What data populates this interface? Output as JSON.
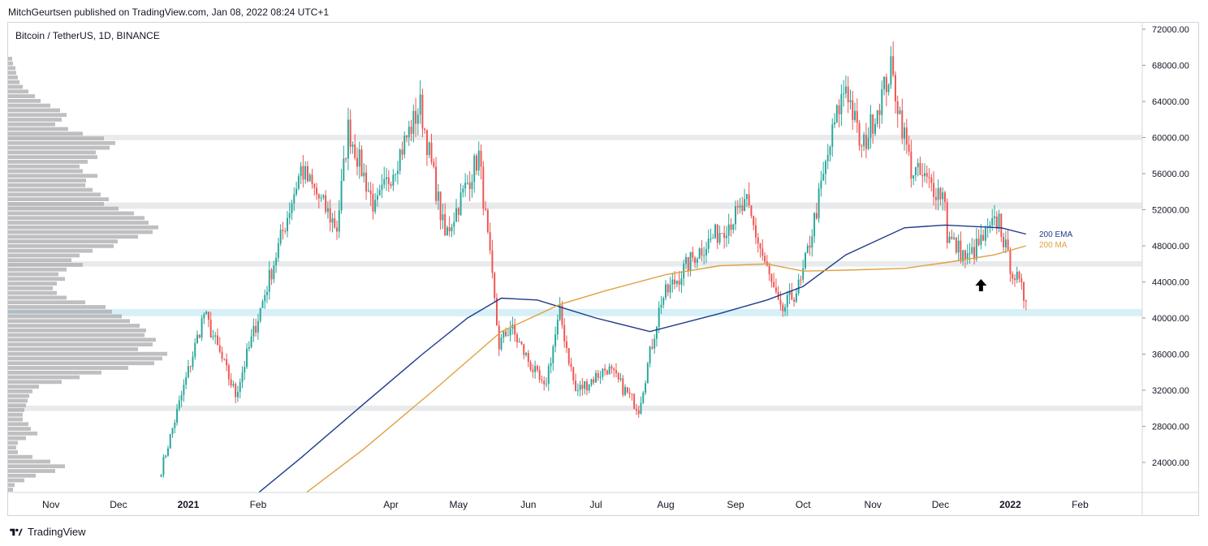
{
  "header": {
    "publisher_line": "MitchGeurtsen published on TradingView.com, Jan 08, 2022 08:24 UTC+1"
  },
  "symbol_label": "Bitcoin / TetherUS, 1D, BINANCE",
  "footer": {
    "brand": "TradingView",
    "logo_icon": "tradingview-logo-icon"
  },
  "colors": {
    "up": "#26a69a",
    "down": "#ef5350",
    "ema": "#1e3a8a",
    "ma": "#e0a040",
    "zone_gray": "#e9eaec",
    "zone_blue": "#d7f0f7",
    "volume_profile": "#a9aaae"
  },
  "chart_data": {
    "type": "candlestick",
    "title": "Bitcoin / TetherUS, 1D, BINANCE",
    "y_axis": {
      "ticks": [
        72000,
        68000,
        64000,
        60000,
        56000,
        52000,
        48000,
        44000,
        40000,
        36000,
        32000,
        28000,
        24000
      ],
      "tick_labels": [
        "72000.00",
        "68000.00",
        "64000.00",
        "60000.00",
        "56000.00",
        "52000.00",
        "48000.00",
        "44000.00",
        "40000.00",
        "36000.00",
        "32000.00",
        "28000.00",
        "24000.00"
      ],
      "range": [
        20200,
        72800
      ]
    },
    "x_axis": {
      "labels": [
        "Nov",
        "Dec",
        "2021",
        "Feb",
        "Apr",
        "May",
        "Jun",
        "Jul",
        "Aug",
        "Sep",
        "Oct",
        "Nov",
        "Dec",
        "2022",
        "Feb"
      ],
      "bold_labels": [
        "2021",
        "2022"
      ],
      "range": [
        "2020-10-13",
        "2022-02-25"
      ]
    },
    "anchors": [
      [
        "2020-12-20",
        23200
      ],
      [
        "2021-01-08",
        40500
      ],
      [
        "2021-01-22",
        31500
      ],
      [
        "2021-02-20",
        56500
      ],
      [
        "2021-03-08",
        50000
      ],
      [
        "2021-03-13",
        61000
      ],
      [
        "2021-03-25",
        52000
      ],
      [
        "2021-04-14",
        63500
      ],
      [
        "2021-04-25",
        49000
      ],
      [
        "2021-05-10",
        58000
      ],
      [
        "2021-05-19",
        37000
      ],
      [
        "2021-05-24",
        39000
      ],
      [
        "2021-06-08",
        32000
      ],
      [
        "2021-06-15",
        40500
      ],
      [
        "2021-06-22",
        31800
      ],
      [
        "2021-07-06",
        34500
      ],
      [
        "2021-07-20",
        30000
      ],
      [
        "2021-07-30",
        42000
      ],
      [
        "2021-08-14",
        47000
      ],
      [
        "2021-09-06",
        52500
      ],
      [
        "2021-09-21",
        40500
      ],
      [
        "2021-09-30",
        43800
      ],
      [
        "2021-10-15",
        61500
      ],
      [
        "2021-10-20",
        66000
      ],
      [
        "2021-10-27",
        58500
      ],
      [
        "2021-11-09",
        67500
      ],
      [
        "2021-11-18",
        56500
      ],
      [
        "2021-12-03",
        53500
      ],
      [
        "2021-12-04",
        49000
      ],
      [
        "2021-12-13",
        46500
      ],
      [
        "2021-12-27",
        51000
      ],
      [
        "2021-12-31",
        46500
      ],
      [
        "2022-01-08",
        41800
      ]
    ],
    "moving_averages": [
      {
        "name": "200 EMA",
        "values": [
          [
            "2021-01-30",
            20200
          ],
          [
            "2021-02-20",
            24500
          ],
          [
            "2021-03-20",
            30500
          ],
          [
            "2021-04-15",
            36000
          ],
          [
            "2021-05-05",
            40000
          ],
          [
            "2021-05-20",
            42200
          ],
          [
            "2021-06-05",
            42000
          ],
          [
            "2021-07-01",
            40000
          ],
          [
            "2021-07-25",
            38500
          ],
          [
            "2021-08-25",
            40500
          ],
          [
            "2021-09-15",
            42000
          ],
          [
            "2021-10-01",
            43500
          ],
          [
            "2021-10-20",
            47000
          ],
          [
            "2021-11-15",
            50000
          ],
          [
            "2021-12-03",
            50300
          ],
          [
            "2021-12-28",
            50000
          ],
          [
            "2022-01-08",
            49300
          ]
        ]
      },
      {
        "name": "200 MA",
        "values": [
          [
            "2021-02-20",
            20200
          ],
          [
            "2021-03-20",
            25500
          ],
          [
            "2021-04-20",
            32000
          ],
          [
            "2021-05-20",
            38500
          ],
          [
            "2021-06-15",
            41500
          ],
          [
            "2021-07-05",
            43000
          ],
          [
            "2021-08-01",
            44800
          ],
          [
            "2021-08-25",
            45800
          ],
          [
            "2021-09-15",
            46000
          ],
          [
            "2021-10-01",
            45200
          ],
          [
            "2021-10-20",
            45300
          ],
          [
            "2021-11-15",
            45500
          ],
          [
            "2021-12-05",
            46200
          ],
          [
            "2021-12-25",
            47000
          ],
          [
            "2022-01-08",
            48000
          ]
        ]
      }
    ],
    "zones": [
      {
        "range": [
          59700,
          60300
        ],
        "kind": "gray"
      },
      {
        "range": [
          52100,
          52800
        ],
        "kind": "gray"
      },
      {
        "range": [
          45700,
          46300
        ],
        "kind": "gray"
      },
      {
        "range": [
          40200,
          41000
        ],
        "kind": "blue"
      },
      {
        "range": [
          29700,
          30300
        ],
        "kind": "gray"
      }
    ],
    "annotations": [
      "up-arrow"
    ],
    "volume_profile": [
      5,
      6,
      9,
      10,
      12,
      14,
      18,
      25,
      33,
      40,
      52,
      64,
      72,
      66,
      58,
      74,
      92,
      118,
      132,
      125,
      108,
      110,
      98,
      88,
      92,
      110,
      96,
      95,
      104,
      114,
      124,
      118,
      136,
      155,
      168,
      173,
      185,
      178,
      160,
      135,
      130,
      104,
      88,
      78,
      92,
      72,
      62,
      70,
      60,
      55,
      60,
      72,
      95,
      120,
      128,
      140,
      150,
      162,
      170,
      168,
      182,
      178,
      160,
      196,
      190,
      180,
      148,
      115,
      88,
      66,
      38,
      30,
      26,
      24,
      22,
      20,
      18,
      18,
      25,
      28,
      36,
      22,
      12,
      10,
      12,
      30,
      52,
      70,
      58,
      34,
      20,
      8,
      6
    ]
  }
}
